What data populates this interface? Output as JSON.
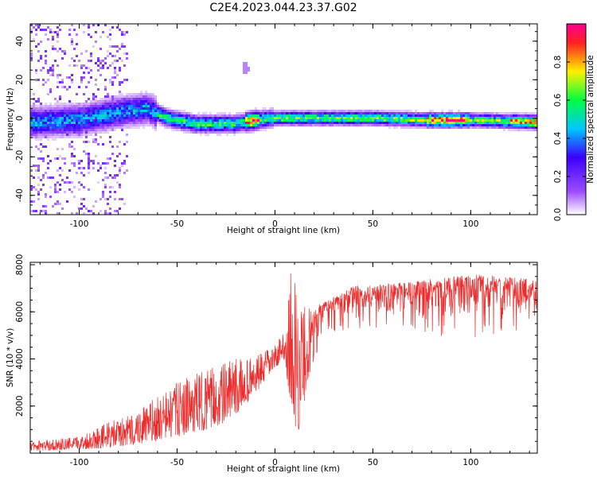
{
  "title": "C2E4.2023.044.23.37.G02",
  "chart_data": [
    {
      "type": "heatmap",
      "xlabel": "Height of straight line (km)",
      "ylabel": "Frequency (Hz)",
      "xlim": [
        -125,
        134
      ],
      "ylim": [
        -50,
        49
      ],
      "xticks": [
        -100,
        -50,
        0,
        50,
        100
      ],
      "yticks": [
        -40,
        -20,
        0,
        20,
        40
      ],
      "grid": false,
      "colorbar": {
        "label": "Normalized spectral amplitude",
        "range": [
          0,
          1
        ],
        "ticks": [
          "0.0",
          "0.2",
          "0.4",
          "0.6",
          "0.8"
        ],
        "colormap": [
          "#ffffff",
          "#9d4dff",
          "#3a00ff",
          "#00c8ff",
          "#00ff40",
          "#fff000",
          "#ff2020",
          "#ff0090"
        ]
      },
      "features": {
        "noise_region_x": [
          -125,
          -75
        ],
        "band_center_hz": [
          {
            "x": -120,
            "hz": -2
          },
          {
            "x": -100,
            "hz": -1
          },
          {
            "x": -80,
            "hz": 3
          },
          {
            "x": -65,
            "hz": 5
          },
          {
            "x": -55,
            "hz": 0
          },
          {
            "x": -40,
            "hz": -3
          },
          {
            "x": -20,
            "hz": -3
          },
          {
            "x": -10,
            "hz": -1
          },
          {
            "x": 0,
            "hz": 0
          },
          {
            "x": 20,
            "hz": 0
          },
          {
            "x": 50,
            "hz": 0
          },
          {
            "x": 80,
            "hz": -1
          },
          {
            "x": 100,
            "hz": -1
          },
          {
            "x": 134,
            "hz": -2
          }
        ],
        "spot": {
          "x": -15,
          "hz": 26
        }
      }
    },
    {
      "type": "line",
      "xlabel": "Height of straight line (km)",
      "ylabel": "SNR (10 * v/v)",
      "xlim": [
        -125,
        134
      ],
      "ylim": [
        0,
        8100
      ],
      "xticks": [
        -100,
        -50,
        0,
        50,
        100
      ],
      "yticks": [
        2000,
        4000,
        6000,
        8000
      ],
      "color": "#ee2c2c",
      "grid": false,
      "envelope": [
        {
          "x": -125,
          "low": 100,
          "high": 500
        },
        {
          "x": -100,
          "low": 150,
          "high": 700
        },
        {
          "x": -90,
          "low": 200,
          "high": 1200
        },
        {
          "x": -75,
          "low": 300,
          "high": 1600
        },
        {
          "x": -60,
          "low": 500,
          "high": 2400
        },
        {
          "x": -50,
          "low": 700,
          "high": 3000
        },
        {
          "x": -40,
          "low": 900,
          "high": 3400
        },
        {
          "x": -30,
          "low": 1100,
          "high": 3700
        },
        {
          "x": -20,
          "low": 1600,
          "high": 4000
        },
        {
          "x": -10,
          "low": 2500,
          "high": 4100
        },
        {
          "x": 0,
          "low": 3600,
          "high": 4600
        },
        {
          "x": 5,
          "low": 4000,
          "high": 5200
        },
        {
          "x": 8,
          "low": 1500,
          "high": 8000
        },
        {
          "x": 12,
          "low": 900,
          "high": 6800
        },
        {
          "x": 18,
          "low": 3400,
          "high": 6200
        },
        {
          "x": 25,
          "low": 5500,
          "high": 6400
        },
        {
          "x": 40,
          "low": 5800,
          "high": 7100
        },
        {
          "x": 60,
          "low": 5700,
          "high": 7200
        },
        {
          "x": 80,
          "low": 5500,
          "high": 7400
        },
        {
          "x": 100,
          "low": 5400,
          "high": 7600
        },
        {
          "x": 134,
          "low": 5600,
          "high": 7400
        }
      ]
    }
  ]
}
